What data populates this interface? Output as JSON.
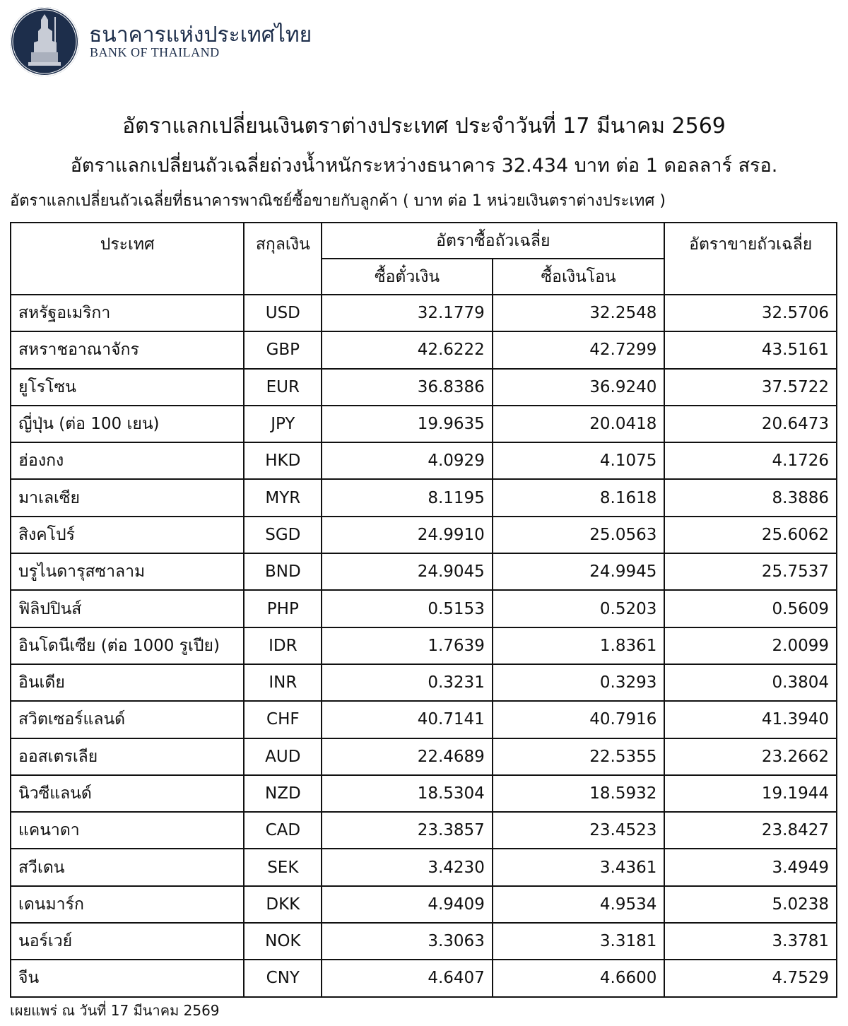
{
  "header": {
    "bank_name_th": "ธนาคารแห่งประเทศไทย",
    "bank_name_en": "BANK OF THAILAND",
    "brand_color": "#1d2e4b"
  },
  "title": "อัตราแลกเปลี่ยนเงินตราต่างประเทศ ประจำวันที่ 17 มีนาคม 2569",
  "subtitle": "อัตราแลกเปลี่ยนถัวเฉลี่ยถ่วงน้ำหนักระหว่างธนาคาร 32.434 บาท ต่อ 1 ดอลลาร์ สรอ.",
  "unit_line": "อัตราแลกเปลี่ยนถัวเฉลี่ยที่ธนาคารพาณิชย์ซื้อขายกับลูกค้า ( บาท ต่อ 1 หน่วยเงินตราต่างประเทศ )",
  "table": {
    "headers": {
      "country": "ประเทศ",
      "currency": "สกุลเงิน",
      "buying": "อัตราซื้อถัวเฉลี่ย",
      "buying_sight": "ซื้อตั๋วเงิน",
      "buying_transfer": "ซื้อเงินโอน",
      "selling": "อัตราขายถัวเฉลี่ย"
    },
    "rows": [
      [
        "สหรัฐอเมริกา",
        "USD",
        "32.1779",
        "32.2548",
        "32.5706"
      ],
      [
        "สหราชอาณาจักร",
        "GBP",
        "42.6222",
        "42.7299",
        "43.5161"
      ],
      [
        "ยูโรโซน",
        "EUR",
        "36.8386",
        "36.9240",
        "37.5722"
      ],
      [
        "ญี่ปุ่น (ต่อ 100 เยน)",
        "JPY",
        "19.9635",
        "20.0418",
        "20.6473"
      ],
      [
        "ฮ่องกง",
        "HKD",
        "4.0929",
        "4.1075",
        "4.1726"
      ],
      [
        "มาเลเซีย",
        "MYR",
        "8.1195",
        "8.1618",
        "8.3886"
      ],
      [
        "สิงคโปร์",
        "SGD",
        "24.9910",
        "25.0563",
        "25.6062"
      ],
      [
        "บรูไนดารุสซาลาม",
        "BND",
        "24.9045",
        "24.9945",
        "25.7537"
      ],
      [
        "ฟิลิปปินส์",
        "PHP",
        "0.5153",
        "0.5203",
        "0.5609"
      ],
      [
        "อินโดนีเซีย (ต่อ 1000 รูเปีย)",
        "IDR",
        "1.7639",
        "1.8361",
        "2.0099"
      ],
      [
        "อินเดีย",
        "INR",
        "0.3231",
        "0.3293",
        "0.3804"
      ],
      [
        "สวิตเซอร์แลนด์",
        "CHF",
        "40.7141",
        "40.7916",
        "41.3940"
      ],
      [
        "ออสเตรเลีย",
        "AUD",
        "22.4689",
        "22.5355",
        "23.2662"
      ],
      [
        "นิวซีแลนด์",
        "NZD",
        "18.5304",
        "18.5932",
        "19.1944"
      ],
      [
        "แคนาดา",
        "CAD",
        "23.3857",
        "23.4523",
        "23.8427"
      ],
      [
        "สวีเดน",
        "SEK",
        "3.4230",
        "3.4361",
        "3.4949"
      ],
      [
        "เดนมาร์ก",
        "DKK",
        "4.9409",
        "4.9534",
        "5.0238"
      ],
      [
        "นอร์เวย์",
        "NOK",
        "3.3063",
        "3.3181",
        "3.3781"
      ],
      [
        "จีน",
        "CNY",
        "4.6407",
        "4.6600",
        "4.7529"
      ]
    ]
  },
  "footer": "เผยแพร่ ณ วันที่ 17 มีนาคม 2569"
}
